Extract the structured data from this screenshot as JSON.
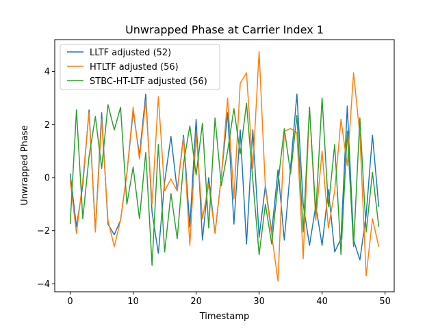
{
  "chart_data": {
    "type": "line",
    "title": "Unwrapped Phase at Carrier Index 1",
    "xlabel": "Timestamp",
    "ylabel": "Unwrapped Phase",
    "xlim": [
      -2.45,
      51.45
    ],
    "ylim": [
      -4.3,
      5.2
    ],
    "xticks": [
      0,
      10,
      20,
      30,
      40,
      50
    ],
    "yticks": [
      -4,
      -2,
      0,
      2,
      4
    ],
    "grid": false,
    "legend_position": "top-left",
    "x": [
      0,
      1,
      2,
      3,
      4,
      5,
      6,
      7,
      8,
      9,
      10,
      11,
      12,
      13,
      14,
      15,
      16,
      17,
      18,
      19,
      20,
      21,
      22,
      23,
      24,
      25,
      26,
      27,
      28,
      29,
      30,
      31,
      32,
      33,
      34,
      35,
      36,
      37,
      38,
      39,
      40,
      41,
      42,
      43,
      44,
      45,
      46,
      47,
      48,
      49
    ],
    "series": [
      {
        "name": "LLTF adjusted (52)",
        "color": "#1f77b4",
        "values": [
          0.15,
          -1.85,
          -0.3,
          2.55,
          -2.0,
          2.45,
          -1.75,
          -2.15,
          -1.6,
          0.15,
          2.5,
          0.85,
          3.15,
          -1.3,
          -2.85,
          -0.15,
          1.55,
          -0.5,
          1.6,
          -1.85,
          2.2,
          -2.35,
          0.0,
          -2.1,
          0.05,
          2.45,
          -1.75,
          1.8,
          -2.5,
          1.8,
          -2.25,
          -0.3,
          -2.05,
          0.3,
          -2.35,
          0.4,
          3.15,
          -1.0,
          -2.55,
          -1.05,
          -2.55,
          -0.45,
          -2.8,
          -2.3,
          2.7,
          -2.35,
          -3.1,
          -1.4,
          1.6,
          -1.1
        ]
      },
      {
        "name": "HTLTF adjusted (56)",
        "color": "#ff7f0e",
        "values": [
          -0.1,
          -2.1,
          -0.1,
          2.45,
          -2.05,
          2.2,
          -1.6,
          -2.6,
          -1.6,
          0.15,
          2.65,
          0.7,
          2.9,
          -1.0,
          3.05,
          -0.5,
          -0.05,
          -0.5,
          1.5,
          -2.55,
          1.65,
          -1.55,
          -0.25,
          -2.1,
          0.05,
          3.0,
          -0.8,
          3.55,
          3.95,
          0.35,
          4.75,
          -0.4,
          -2.15,
          -3.9,
          1.75,
          1.85,
          1.7,
          -3.05,
          2.65,
          -1.6,
          1.0,
          -1.9,
          -0.5,
          2.2,
          0.45,
          3.95,
          1.6,
          -3.7,
          -1.55,
          -2.6
        ]
      },
      {
        "name": "STBC-HT-LTF adjusted (56)",
        "color": "#2ca02c",
        "values": [
          -1.75,
          2.55,
          -1.55,
          0.8,
          2.3,
          0.35,
          2.75,
          1.8,
          2.65,
          -1.0,
          0.4,
          -1.55,
          0.95,
          -3.3,
          1.25,
          -2.8,
          -0.6,
          -2.3,
          0.55,
          1.95,
          0.1,
          2.05,
          -1.9,
          2.25,
          -0.3,
          1.0,
          2.6,
          0.9,
          2.8,
          -0.1,
          -2.9,
          -1.0,
          -2.5,
          -0.2,
          1.85,
          0.15,
          2.35,
          -2.05,
          2.65,
          -1.35,
          3.0,
          -1.1,
          1.25,
          -2.9,
          1.75,
          -2.6,
          2.25,
          -2.05,
          0.2,
          -1.85
        ]
      }
    ]
  }
}
